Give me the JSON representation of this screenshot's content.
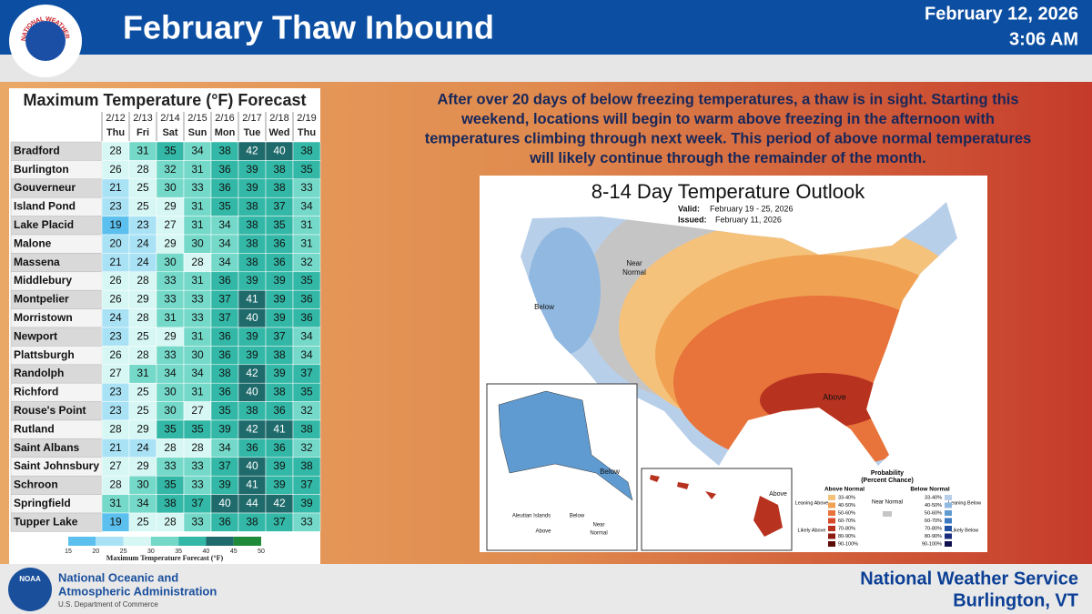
{
  "header": {
    "title": "February Thaw Inbound",
    "date": "February 12, 2026",
    "time": "3:06 AM",
    "logo_text": "NATIONAL WEATHER SERVICE"
  },
  "table": {
    "title": "Maximum Temperature (°F) Forecast",
    "dates": [
      "2/12",
      "2/13",
      "2/14",
      "2/15",
      "2/16",
      "2/17",
      "2/18",
      "2/19"
    ],
    "days": [
      "Thu",
      "Fri",
      "Sat",
      "Sun",
      "Mon",
      "Tue",
      "Wed",
      "Thu"
    ],
    "rows": [
      [
        "Bradford",
        28,
        31,
        35,
        34,
        38,
        42,
        40,
        38
      ],
      [
        "Burlington",
        26,
        28,
        32,
        31,
        36,
        39,
        38,
        35
      ],
      [
        "Gouverneur",
        21,
        25,
        30,
        33,
        36,
        39,
        38,
        33
      ],
      [
        "Island Pond",
        23,
        25,
        29,
        31,
        35,
        38,
        37,
        34
      ],
      [
        "Lake Placid",
        19,
        23,
        27,
        31,
        34,
        38,
        35,
        31
      ],
      [
        "Malone",
        20,
        24,
        29,
        30,
        34,
        38,
        36,
        31
      ],
      [
        "Massena",
        21,
        24,
        30,
        28,
        34,
        38,
        36,
        32
      ],
      [
        "Middlebury",
        26,
        28,
        33,
        31,
        36,
        39,
        39,
        35
      ],
      [
        "Montpelier",
        26,
        29,
        33,
        33,
        37,
        41,
        39,
        36
      ],
      [
        "Morristown",
        24,
        28,
        31,
        33,
        37,
        40,
        39,
        36
      ],
      [
        "Newport",
        23,
        25,
        29,
        31,
        36,
        39,
        37,
        34
      ],
      [
        "Plattsburgh",
        26,
        28,
        33,
        30,
        36,
        39,
        38,
        34
      ],
      [
        "Randolph",
        27,
        31,
        34,
        34,
        38,
        42,
        39,
        37
      ],
      [
        "Richford",
        23,
        25,
        30,
        31,
        36,
        40,
        38,
        35
      ],
      [
        "Rouse's Point",
        23,
        25,
        30,
        27,
        35,
        38,
        36,
        32
      ],
      [
        "Rutland",
        28,
        29,
        35,
        35,
        39,
        42,
        41,
        38
      ],
      [
        "Saint Albans",
        21,
        24,
        28,
        28,
        34,
        36,
        36,
        32
      ],
      [
        "Saint Johnsbury",
        27,
        29,
        33,
        33,
        37,
        40,
        39,
        38
      ],
      [
        "Schroon",
        28,
        30,
        35,
        33,
        39,
        41,
        39,
        37
      ],
      [
        "Springfield",
        31,
        34,
        38,
        37,
        40,
        44,
        42,
        39
      ],
      [
        "Tupper Lake",
        19,
        25,
        28,
        33,
        36,
        38,
        37,
        33
      ]
    ],
    "colorbar": {
      "ticks": [
        15,
        20,
        25,
        30,
        35,
        40,
        45,
        50
      ],
      "colors": [
        "#5cc0ee",
        "#a9e2f5",
        "#d6f7f3",
        "#74d9c9",
        "#33b7a6",
        "#1f6b6c",
        "#1e8a3a"
      ],
      "label": "Maximum Temperature Forecast (°F)"
    }
  },
  "description": [
    "After over 20 days of below freezing temperatures, a thaw is in sight. Starting this",
    "weekend, locations will begin to warm above freezing in the afternoon with",
    "temperatures climbing through next week. This period of above normal temperatures",
    "will likely continue through the remainder of the month."
  ],
  "map": {
    "title": "8-14 Day Temperature Outlook",
    "valid_label": "Valid:",
    "valid": "February 19 - 25, 2026",
    "issued_label": "Issued:",
    "issued": "February 11, 2026",
    "labels": [
      "Near",
      "Normal",
      "Below",
      "Above",
      "Below",
      "Aleutian Islands",
      "Below",
      "Above",
      "Near",
      "Normal",
      "Above"
    ],
    "legend": {
      "title": "Probability",
      "subtitle": "(Percent Chance)",
      "above": "Above Normal",
      "below": "Below Normal",
      "near": "Near Normal",
      "leaning_above": "Leaning Above",
      "likely_above": "Likely Above",
      "leaning_below": "Leaning Below",
      "likely_below": "Likely Below",
      "ranges": [
        "33-40%",
        "40-50%",
        "50-60%",
        "60-70%",
        "70-80%",
        "80-90%",
        "90-100%"
      ],
      "above_colors": [
        "#f5c27c",
        "#f0a252",
        "#e8733b",
        "#d84b2a",
        "#b83220",
        "#8c1b10",
        "#5c0b05"
      ],
      "below_colors": [
        "#b8cfe9",
        "#90b8e0",
        "#5f9bd1",
        "#3b79c1",
        "#2151a1",
        "#1b2d7b",
        "#11114f"
      ]
    }
  },
  "footer": {
    "agency1": "National Oceanic and",
    "agency2": "Atmospheric Administration",
    "dept": "U.S. Department of Commerce",
    "noaa": "NOAA",
    "office1": "National Weather Service",
    "office2": "Burlington, VT"
  }
}
